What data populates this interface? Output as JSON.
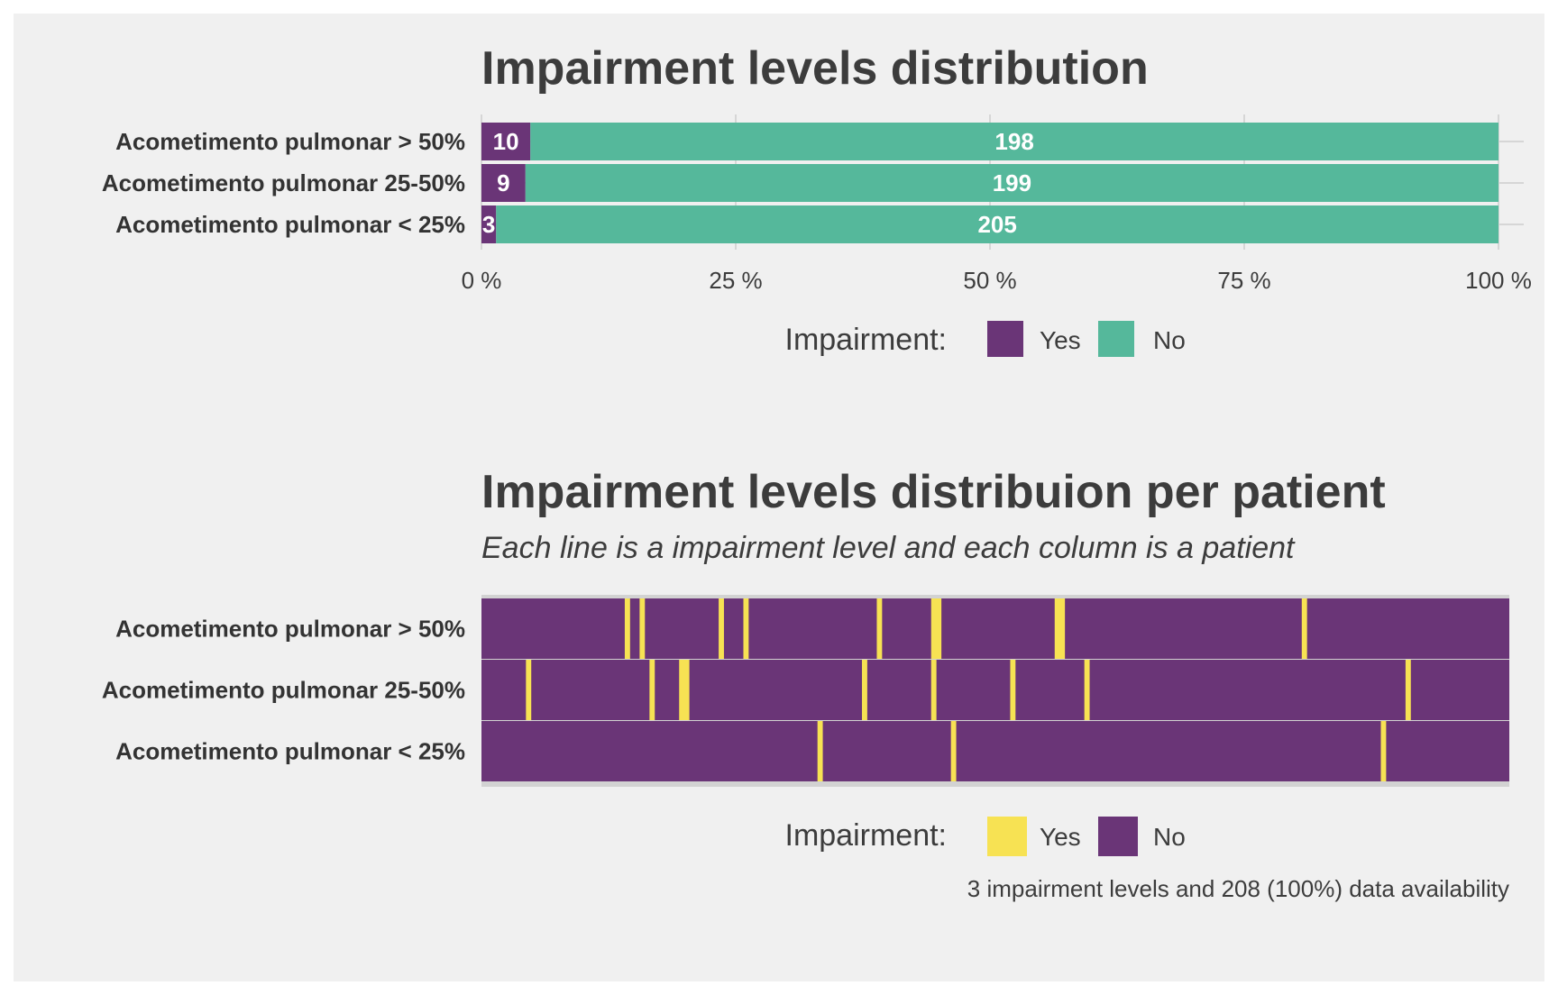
{
  "colors": {
    "yes_bar": "#6a3577",
    "no_bar": "#55b89b",
    "yes_tile": "#f7e253",
    "no_tile": "#6a3577",
    "panel_bg": "#f0f0f0",
    "grid": "#d6d6d6"
  },
  "chart_data": [
    {
      "type": "bar",
      "orientation": "horizontal",
      "stacked": "percent",
      "title": "Impairment levels distribution",
      "categories": [
        "Acometimento pulmonar > 50%",
        "Acometimento pulmonar 25-50%",
        "Acometimento pulmonar < 25%"
      ],
      "series": [
        {
          "name": "Yes",
          "values": [
            10,
            9,
            3
          ]
        },
        {
          "name": "No",
          "values": [
            198,
            199,
            205
          ]
        }
      ],
      "xticks": [
        "0 %",
        "25 %",
        "50 %",
        "75 %",
        "100 %"
      ],
      "xlim": [
        0,
        100
      ],
      "grid": true,
      "legend": {
        "title": "Impairment:",
        "position": "bottom",
        "items": [
          "Yes",
          "No"
        ]
      }
    },
    {
      "type": "heatmap",
      "title": "Impairment levels distribuion per patient",
      "subtitle": "Each line is a impairment level and each column is a patient",
      "rows": [
        "Acometimento pulmonar > 50%",
        "Acometimento pulmonar 25-50%",
        "Acometimento pulmonar < 25%"
      ],
      "n_patients": 208,
      "yes_patients": [
        [
          29,
          32,
          48,
          53,
          80,
          91,
          92,
          116,
          117,
          166
        ],
        [
          9,
          34,
          40,
          41,
          77,
          91,
          107,
          122,
          187
        ],
        [
          68,
          95,
          182
        ]
      ],
      "legend": {
        "title": "Impairment:",
        "position": "bottom",
        "items": [
          "Yes",
          "No"
        ]
      },
      "caption": "3 impairment levels and 208 (100%) data availability"
    }
  ]
}
